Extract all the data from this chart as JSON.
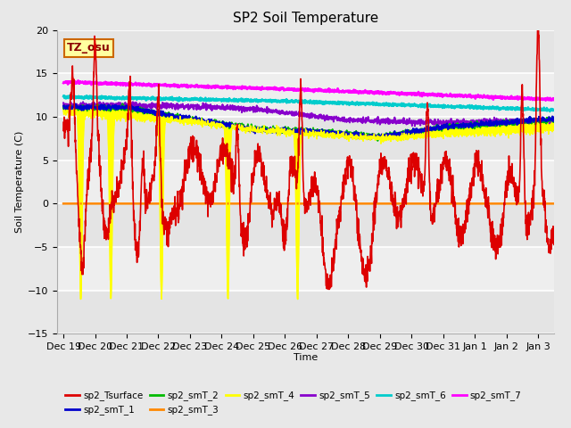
{
  "title": "SP2 Soil Temperature",
  "ylabel": "Soil Temperature (C)",
  "xlabel": "Time",
  "ylim": [
    -15,
    20
  ],
  "annotation": "TZ_osu",
  "x_tick_labels": [
    "Dec 19",
    "Dec 20",
    "Dec 21",
    "Dec 22",
    "Dec 23",
    "Dec 24",
    "Dec 25",
    "Dec 26",
    "Dec 27",
    "Dec 28",
    "Dec 29",
    "Dec 30",
    "Dec 31",
    "Jan 1",
    "Jan 2",
    "Jan 3"
  ],
  "bg_color": "#e8e8e8",
  "plot_bg_color": "#f5f5f5",
  "stripe_colors": [
    "#e8e8e8",
    "#f0f0f0"
  ],
  "colors": {
    "sp2_Tsurface": "#dd0000",
    "sp2_smT_1": "#0000cc",
    "sp2_smT_2": "#00bb00",
    "sp2_smT_3": "#ff8800",
    "sp2_smT_4": "#ffff00",
    "sp2_smT_5": "#8800cc",
    "sp2_smT_6": "#00cccc",
    "sp2_smT_7": "#ff00ff"
  },
  "legend_items": [
    [
      "sp2_Tsurface",
      "#dd0000"
    ],
    [
      "sp2_smT_1",
      "#0000cc"
    ],
    [
      "sp2_smT_2",
      "#00bb00"
    ],
    [
      "sp2_smT_3",
      "#ff8800"
    ],
    [
      "sp2_smT_4",
      "#ffff00"
    ],
    [
      "sp2_smT_5",
      "#8800cc"
    ],
    [
      "sp2_smT_6",
      "#00cccc"
    ],
    [
      "sp2_smT_7",
      "#ff00ff"
    ]
  ]
}
